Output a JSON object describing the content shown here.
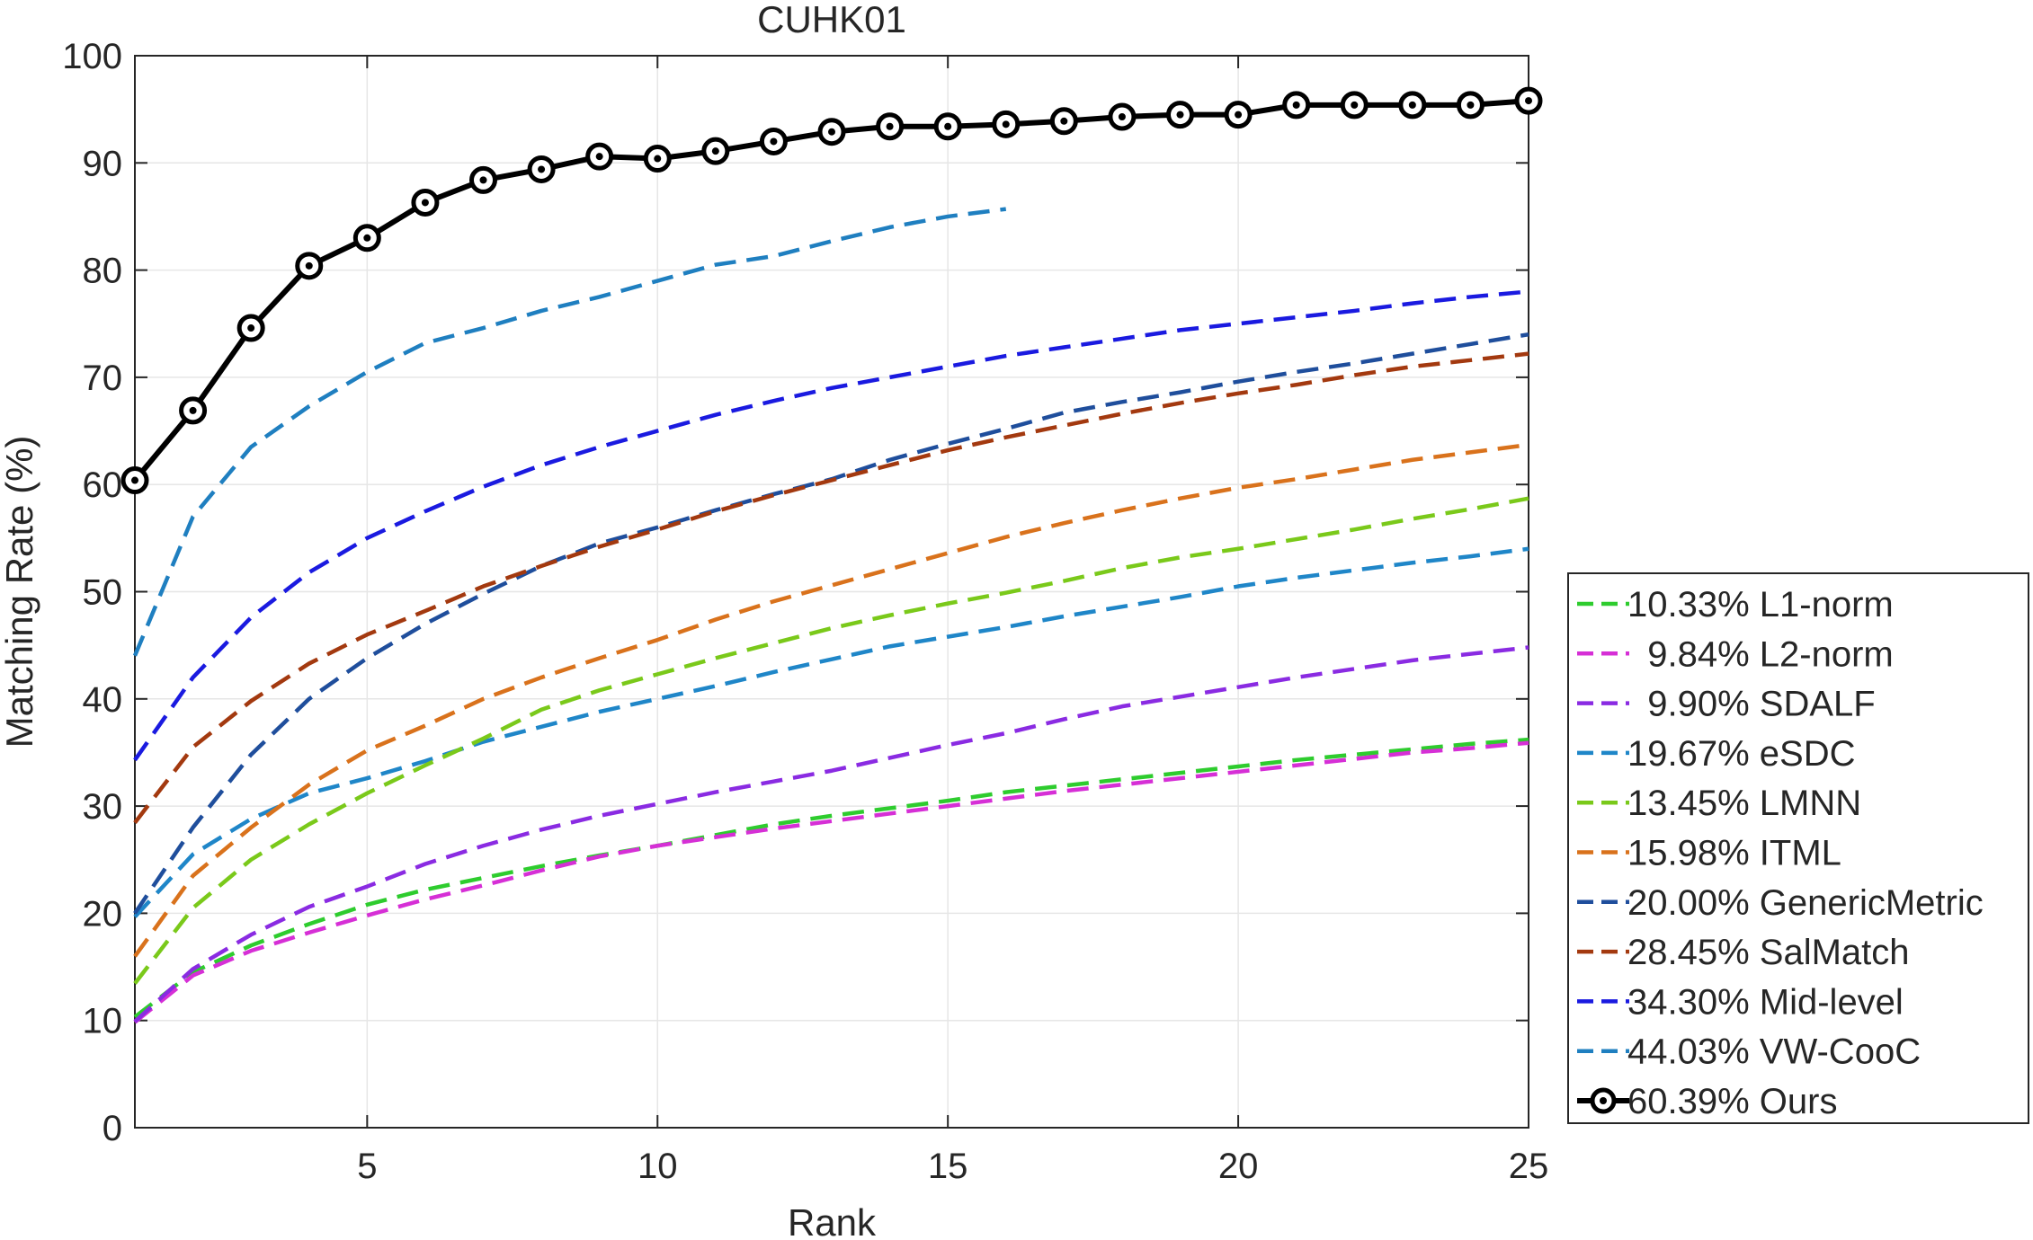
{
  "chart_data": {
    "type": "line",
    "title": "CUHK01",
    "xlabel": "Rank",
    "ylabel": "Matching Rate (%)",
    "xlim": [
      1,
      25
    ],
    "ylim": [
      0,
      100
    ],
    "xticks": [
      5,
      10,
      15,
      20,
      25
    ],
    "yticks": [
      0,
      10,
      20,
      30,
      40,
      50,
      60,
      70,
      80,
      90,
      100
    ],
    "grid": true,
    "legend_position": "bottom-right outside",
    "series": [
      {
        "name": "10.33% L1-norm",
        "color": "#2ecc2e",
        "style": "dashed",
        "x": [
          1,
          2,
          3,
          4,
          5,
          6,
          7,
          8,
          9,
          10,
          11,
          12,
          13,
          14,
          15,
          16,
          17,
          18,
          19,
          20,
          21,
          22,
          23,
          24,
          25
        ],
        "y": [
          10.33,
          14.5,
          17.0,
          19.0,
          20.8,
          22.2,
          23.3,
          24.4,
          25.4,
          26.3,
          27.3,
          28.3,
          29.1,
          29.8,
          30.5,
          31.3,
          31.9,
          32.5,
          33.1,
          33.7,
          34.3,
          34.8,
          35.3,
          35.8,
          36.2
        ]
      },
      {
        "name": "9.84% L2-norm",
        "color": "#d62fd6",
        "style": "dashed",
        "x": [
          1,
          2,
          3,
          4,
          5,
          6,
          7,
          8,
          9,
          10,
          11,
          12,
          13,
          14,
          15,
          16,
          17,
          18,
          19,
          20,
          21,
          22,
          23,
          24,
          25
        ],
        "y": [
          9.84,
          14.2,
          16.5,
          18.2,
          19.8,
          21.3,
          22.6,
          24.0,
          25.3,
          26.3,
          27.1,
          27.9,
          28.6,
          29.3,
          30.0,
          30.7,
          31.4,
          32.0,
          32.6,
          33.2,
          33.8,
          34.4,
          35.0,
          35.4,
          35.9
        ]
      },
      {
        "name": "9.90% SDALF",
        "color": "#8a2be2",
        "style": "dashed",
        "x": [
          1,
          2,
          3,
          4,
          5,
          6,
          7,
          8,
          9,
          10,
          11,
          12,
          13,
          14,
          15,
          16,
          17,
          18,
          19,
          20,
          21,
          22,
          23,
          24,
          25
        ],
        "y": [
          9.9,
          14.8,
          18.0,
          20.6,
          22.5,
          24.6,
          26.3,
          27.8,
          29.1,
          30.2,
          31.3,
          32.3,
          33.3,
          34.5,
          35.7,
          36.8,
          38.1,
          39.3,
          40.2,
          41.1,
          42.0,
          42.8,
          43.6,
          44.2,
          44.8
        ]
      },
      {
        "name": "19.67% eSDC",
        "color": "#1f86c8",
        "style": "dashed",
        "x": [
          1,
          2,
          3,
          4,
          5,
          6,
          7,
          8,
          9,
          10,
          11,
          12,
          13,
          14,
          15,
          16,
          17,
          18,
          19,
          20,
          21,
          22,
          23,
          24,
          25
        ],
        "y": [
          19.67,
          25.5,
          28.8,
          31.2,
          32.6,
          34.2,
          36.0,
          37.4,
          38.8,
          40.0,
          41.2,
          42.5,
          43.7,
          44.9,
          45.8,
          46.7,
          47.7,
          48.6,
          49.5,
          50.5,
          51.3,
          52.0,
          52.7,
          53.3,
          54.0
        ]
      },
      {
        "name": "13.45% LMNN",
        "color": "#7ac91a",
        "style": "dashed",
        "x": [
          1,
          2,
          3,
          4,
          5,
          6,
          7,
          8,
          9,
          10,
          11,
          12,
          13,
          14,
          15,
          16,
          17,
          18,
          19,
          20,
          21,
          22,
          23,
          24,
          25
        ],
        "y": [
          13.45,
          20.5,
          25.0,
          28.3,
          31.2,
          33.8,
          36.3,
          39.0,
          40.8,
          42.3,
          43.8,
          45.2,
          46.6,
          47.8,
          48.9,
          49.9,
          51.0,
          52.2,
          53.2,
          54.0,
          54.9,
          55.8,
          56.8,
          57.7,
          58.7
        ]
      },
      {
        "name": "15.98% ITML",
        "color": "#d9721c",
        "style": "dashed",
        "x": [
          1,
          2,
          3,
          4,
          5,
          6,
          7,
          8,
          9,
          10,
          11,
          12,
          13,
          14,
          15,
          16,
          17,
          18,
          19,
          20,
          21,
          22,
          23,
          24,
          25
        ],
        "y": [
          15.98,
          23.5,
          28.0,
          32.0,
          35.2,
          37.5,
          40.0,
          42.0,
          43.8,
          45.5,
          47.4,
          49.1,
          50.6,
          52.1,
          53.6,
          55.1,
          56.4,
          57.6,
          58.7,
          59.7,
          60.5,
          61.4,
          62.3,
          63.0,
          63.7
        ]
      },
      {
        "name": "20.00% GenericMetric",
        "color": "#1f4e9c",
        "style": "dashed",
        "x": [
          1,
          2,
          3,
          4,
          5,
          6,
          7,
          8,
          9,
          10,
          11,
          12,
          13,
          14,
          15,
          16,
          17,
          18,
          19,
          20,
          21,
          22,
          23,
          24,
          25
        ],
        "y": [
          20.0,
          28.0,
          34.8,
          40.0,
          43.8,
          47.0,
          49.8,
          52.4,
          54.5,
          56.0,
          57.6,
          59.1,
          60.5,
          62.3,
          63.8,
          65.2,
          66.7,
          67.7,
          68.6,
          69.6,
          70.5,
          71.3,
          72.2,
          73.1,
          74.0
        ]
      },
      {
        "name": "28.45% SalMatch",
        "color": "#a3390f",
        "style": "dashed",
        "x": [
          1,
          2,
          3,
          4,
          5,
          6,
          7,
          8,
          9,
          10,
          11,
          12,
          13,
          14,
          15,
          16,
          17,
          18,
          19,
          20,
          21,
          22,
          23,
          24,
          25
        ],
        "y": [
          28.45,
          35.5,
          39.8,
          43.3,
          46.0,
          48.2,
          50.5,
          52.4,
          54.2,
          55.8,
          57.5,
          59.0,
          60.4,
          61.8,
          63.2,
          64.4,
          65.5,
          66.6,
          67.6,
          68.5,
          69.3,
          70.2,
          71.0,
          71.6,
          72.2
        ]
      },
      {
        "name": "34.30% Mid-level",
        "color": "#1a1ae0",
        "style": "dashed",
        "x": [
          1,
          2,
          3,
          4,
          5,
          6,
          7,
          8,
          9,
          10,
          11,
          12,
          13,
          14,
          15,
          16,
          17,
          18,
          19,
          20,
          21,
          22,
          23,
          24,
          25
        ],
        "y": [
          34.3,
          42.0,
          47.6,
          51.8,
          55.0,
          57.5,
          59.8,
          61.8,
          63.5,
          65.0,
          66.5,
          67.8,
          69.0,
          70.0,
          71.0,
          72.0,
          72.8,
          73.6,
          74.4,
          75.0,
          75.6,
          76.2,
          76.9,
          77.5,
          78.0
        ]
      },
      {
        "name": "44.03% VW-CooC",
        "color": "#1f7fc0",
        "style": "dashed",
        "x": [
          1,
          2,
          3,
          4,
          5,
          6,
          7,
          8,
          9,
          10,
          11,
          12,
          13,
          14,
          15,
          16
        ],
        "y": [
          44.03,
          57.0,
          63.5,
          67.3,
          70.5,
          73.2,
          74.6,
          76.2,
          77.5,
          79.0,
          80.5,
          81.3,
          82.7,
          84.0,
          85.0,
          85.7
        ]
      },
      {
        "name": "60.39% Ours",
        "color": "#000000",
        "style": "solid-marker",
        "x": [
          1,
          2,
          3,
          4,
          5,
          6,
          7,
          8,
          9,
          10,
          11,
          12,
          13,
          14,
          15,
          16,
          17,
          18,
          19,
          20,
          21,
          22,
          23,
          24,
          25
        ],
        "y": [
          60.39,
          66.9,
          74.6,
          80.4,
          83.0,
          86.3,
          88.4,
          89.4,
          90.6,
          90.4,
          91.1,
          92.0,
          92.9,
          93.4,
          93.4,
          93.6,
          93.9,
          94.3,
          94.5,
          94.5,
          95.4,
          95.4,
          95.4,
          95.4,
          95.8
        ]
      }
    ]
  }
}
